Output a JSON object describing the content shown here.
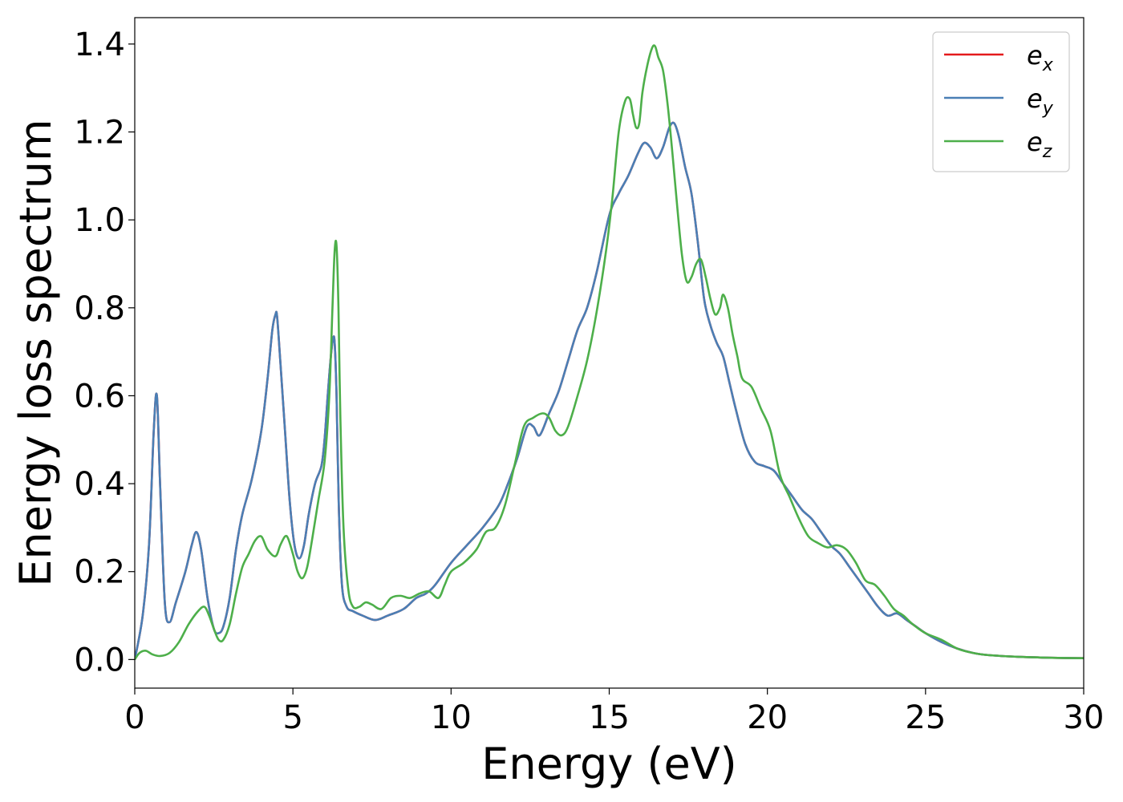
{
  "chart_data": {
    "type": "line",
    "xlabel": "Energy (eV)",
    "ylabel": "Energy loss spectrum",
    "xlim": [
      0,
      30
    ],
    "ylim": [
      -0.065,
      1.46
    ],
    "xticks": [
      0,
      5,
      10,
      15,
      20,
      25,
      30
    ],
    "xtick_labels": [
      "0",
      "5",
      "10",
      "15",
      "20",
      "25",
      "30"
    ],
    "yticks": [
      0.0,
      0.2,
      0.4,
      0.6,
      0.8,
      1.0,
      1.2,
      1.4
    ],
    "ytick_labels": [
      "0.0",
      "0.2",
      "0.4",
      "0.6",
      "0.8",
      "1.0",
      "1.2",
      "1.4"
    ],
    "grid": false,
    "legend_position": "top-right",
    "series": [
      {
        "name": "e",
        "subscript": "x",
        "color": "#e41a1c",
        "x": [
          0,
          0.25,
          0.45,
          0.6,
          0.7,
          0.8,
          0.95,
          1.1,
          1.3,
          1.6,
          1.8,
          1.95,
          2.1,
          2.3,
          2.5,
          2.65,
          2.8,
          3.0,
          3.2,
          3.4,
          3.7,
          4.0,
          4.2,
          4.35,
          4.45,
          4.5,
          4.6,
          4.75,
          4.9,
          5.05,
          5.2,
          5.35,
          5.5,
          5.7,
          5.9,
          6.0,
          6.1,
          6.2,
          6.27,
          6.32,
          6.38,
          6.45,
          6.55,
          6.7,
          6.9,
          7.2,
          7.6,
          8.0,
          8.5,
          8.9,
          9.2,
          9.5,
          10.0,
          10.5,
          11.0,
          11.5,
          11.8,
          12.1,
          12.4,
          12.6,
          12.8,
          13.1,
          13.4,
          13.7,
          14.0,
          14.3,
          14.6,
          15.0,
          15.3,
          15.6,
          15.9,
          16.1,
          16.3,
          16.5,
          16.7,
          16.9,
          17.05,
          17.2,
          17.4,
          17.6,
          17.8,
          18.0,
          18.2,
          18.4,
          18.6,
          18.8,
          19.0,
          19.3,
          19.6,
          19.9,
          20.2,
          20.5,
          20.8,
          21.1,
          21.4,
          21.7,
          22.0,
          22.3,
          22.6,
          22.9,
          23.2,
          23.5,
          23.8,
          24.1,
          24.4,
          24.7,
          25.0,
          25.5,
          26.0,
          26.5,
          27.0,
          28.0,
          29.0,
          30.0
        ],
        "values": [
          0.0,
          0.1,
          0.26,
          0.52,
          0.6,
          0.4,
          0.13,
          0.085,
          0.13,
          0.2,
          0.26,
          0.29,
          0.25,
          0.14,
          0.07,
          0.06,
          0.075,
          0.14,
          0.25,
          0.33,
          0.41,
          0.52,
          0.64,
          0.75,
          0.785,
          0.78,
          0.68,
          0.52,
          0.36,
          0.26,
          0.23,
          0.26,
          0.33,
          0.4,
          0.44,
          0.5,
          0.6,
          0.69,
          0.73,
          0.72,
          0.6,
          0.35,
          0.17,
          0.12,
          0.11,
          0.1,
          0.09,
          0.1,
          0.115,
          0.14,
          0.15,
          0.17,
          0.22,
          0.26,
          0.3,
          0.35,
          0.4,
          0.46,
          0.53,
          0.53,
          0.51,
          0.56,
          0.61,
          0.68,
          0.75,
          0.8,
          0.88,
          1.01,
          1.06,
          1.1,
          1.15,
          1.175,
          1.165,
          1.14,
          1.165,
          1.21,
          1.22,
          1.19,
          1.12,
          1.06,
          0.95,
          0.82,
          0.76,
          0.72,
          0.69,
          0.63,
          0.57,
          0.49,
          0.45,
          0.44,
          0.43,
          0.4,
          0.37,
          0.34,
          0.32,
          0.29,
          0.26,
          0.24,
          0.21,
          0.18,
          0.15,
          0.12,
          0.1,
          0.105,
          0.09,
          0.075,
          0.06,
          0.04,
          0.025,
          0.015,
          0.01,
          0.006,
          0.004,
          0.003
        ]
      },
      {
        "name": "e",
        "subscript": "y",
        "color": "#4a7fb5",
        "x": [
          0,
          0.25,
          0.45,
          0.6,
          0.7,
          0.8,
          0.95,
          1.1,
          1.3,
          1.6,
          1.8,
          1.95,
          2.1,
          2.3,
          2.5,
          2.65,
          2.8,
          3.0,
          3.2,
          3.4,
          3.7,
          4.0,
          4.2,
          4.35,
          4.45,
          4.5,
          4.6,
          4.75,
          4.9,
          5.05,
          5.2,
          5.35,
          5.5,
          5.7,
          5.9,
          6.0,
          6.1,
          6.2,
          6.27,
          6.32,
          6.38,
          6.45,
          6.55,
          6.7,
          6.9,
          7.2,
          7.6,
          8.0,
          8.5,
          8.9,
          9.2,
          9.5,
          10.0,
          10.5,
          11.0,
          11.5,
          11.8,
          12.1,
          12.4,
          12.6,
          12.8,
          13.1,
          13.4,
          13.7,
          14.0,
          14.3,
          14.6,
          15.0,
          15.3,
          15.6,
          15.9,
          16.1,
          16.3,
          16.5,
          16.7,
          16.9,
          17.05,
          17.2,
          17.4,
          17.6,
          17.8,
          18.0,
          18.2,
          18.4,
          18.6,
          18.8,
          19.0,
          19.3,
          19.6,
          19.9,
          20.2,
          20.5,
          20.8,
          21.1,
          21.4,
          21.7,
          22.0,
          22.3,
          22.6,
          22.9,
          23.2,
          23.5,
          23.8,
          24.1,
          24.4,
          24.7,
          25.0,
          25.5,
          26.0,
          26.5,
          27.0,
          28.0,
          29.0,
          30.0
        ],
        "values": [
          0.0,
          0.1,
          0.26,
          0.52,
          0.6,
          0.4,
          0.13,
          0.085,
          0.13,
          0.2,
          0.26,
          0.29,
          0.25,
          0.14,
          0.07,
          0.06,
          0.075,
          0.14,
          0.25,
          0.33,
          0.41,
          0.52,
          0.64,
          0.75,
          0.785,
          0.78,
          0.68,
          0.52,
          0.36,
          0.26,
          0.23,
          0.26,
          0.33,
          0.4,
          0.44,
          0.5,
          0.6,
          0.69,
          0.73,
          0.72,
          0.6,
          0.35,
          0.17,
          0.12,
          0.11,
          0.1,
          0.09,
          0.1,
          0.115,
          0.14,
          0.15,
          0.17,
          0.22,
          0.26,
          0.3,
          0.35,
          0.4,
          0.46,
          0.53,
          0.53,
          0.51,
          0.56,
          0.61,
          0.68,
          0.75,
          0.8,
          0.88,
          1.01,
          1.06,
          1.1,
          1.15,
          1.175,
          1.165,
          1.14,
          1.165,
          1.21,
          1.22,
          1.19,
          1.12,
          1.06,
          0.95,
          0.82,
          0.76,
          0.72,
          0.69,
          0.63,
          0.57,
          0.49,
          0.45,
          0.44,
          0.43,
          0.4,
          0.37,
          0.34,
          0.32,
          0.29,
          0.26,
          0.24,
          0.21,
          0.18,
          0.15,
          0.12,
          0.1,
          0.105,
          0.09,
          0.075,
          0.06,
          0.04,
          0.025,
          0.015,
          0.01,
          0.006,
          0.004,
          0.003
        ]
      },
      {
        "name": "e",
        "subscript": "z",
        "color": "#4daf4a",
        "x": [
          0,
          0.15,
          0.35,
          0.55,
          0.8,
          1.1,
          1.4,
          1.7,
          2.0,
          2.2,
          2.35,
          2.5,
          2.65,
          2.8,
          3.0,
          3.2,
          3.4,
          3.6,
          3.8,
          4.0,
          4.2,
          4.45,
          4.6,
          4.75,
          4.85,
          5.0,
          5.15,
          5.3,
          5.45,
          5.6,
          5.8,
          6.0,
          6.15,
          6.25,
          6.32,
          6.38,
          6.44,
          6.5,
          6.6,
          6.75,
          6.9,
          7.1,
          7.3,
          7.5,
          7.8,
          8.1,
          8.4,
          8.7,
          9.0,
          9.3,
          9.6,
          9.8,
          10.0,
          10.4,
          10.8,
          11.1,
          11.4,
          11.7,
          12.0,
          12.3,
          12.6,
          12.9,
          13.1,
          13.3,
          13.5,
          13.7,
          14.0,
          14.3,
          14.6,
          14.9,
          15.1,
          15.3,
          15.5,
          15.65,
          15.75,
          15.85,
          15.95,
          16.05,
          16.2,
          16.35,
          16.45,
          16.55,
          16.7,
          16.85,
          17.0,
          17.15,
          17.3,
          17.45,
          17.6,
          17.75,
          17.9,
          18.05,
          18.2,
          18.35,
          18.5,
          18.6,
          18.75,
          18.9,
          19.05,
          19.2,
          19.5,
          19.8,
          20.1,
          20.4,
          20.7,
          21.0,
          21.3,
          21.6,
          21.9,
          22.2,
          22.5,
          22.8,
          23.1,
          23.4,
          23.7,
          24.0,
          24.3,
          24.6,
          25.0,
          25.5,
          26.0,
          26.5,
          27.0,
          28.0,
          29.0,
          30.0
        ],
        "values": [
          0.0,
          0.015,
          0.02,
          0.012,
          0.008,
          0.015,
          0.04,
          0.08,
          0.11,
          0.12,
          0.1,
          0.07,
          0.045,
          0.045,
          0.08,
          0.15,
          0.21,
          0.24,
          0.27,
          0.28,
          0.25,
          0.235,
          0.26,
          0.28,
          0.275,
          0.24,
          0.2,
          0.185,
          0.21,
          0.27,
          0.36,
          0.45,
          0.6,
          0.8,
          0.93,
          0.94,
          0.8,
          0.55,
          0.3,
          0.16,
          0.12,
          0.12,
          0.13,
          0.125,
          0.115,
          0.14,
          0.145,
          0.14,
          0.15,
          0.155,
          0.14,
          0.17,
          0.2,
          0.22,
          0.25,
          0.29,
          0.3,
          0.35,
          0.44,
          0.53,
          0.55,
          0.56,
          0.55,
          0.52,
          0.51,
          0.53,
          0.6,
          0.68,
          0.79,
          0.93,
          1.05,
          1.2,
          1.27,
          1.275,
          1.24,
          1.21,
          1.22,
          1.29,
          1.35,
          1.39,
          1.395,
          1.37,
          1.34,
          1.26,
          1.15,
          1.03,
          0.92,
          0.86,
          0.87,
          0.9,
          0.91,
          0.87,
          0.82,
          0.785,
          0.8,
          0.83,
          0.8,
          0.74,
          0.69,
          0.64,
          0.62,
          0.57,
          0.52,
          0.42,
          0.37,
          0.32,
          0.28,
          0.265,
          0.255,
          0.26,
          0.25,
          0.22,
          0.18,
          0.17,
          0.145,
          0.115,
          0.1,
          0.08,
          0.06,
          0.045,
          0.025,
          0.015,
          0.01,
          0.006,
          0.004,
          0.003
        ]
      }
    ]
  }
}
